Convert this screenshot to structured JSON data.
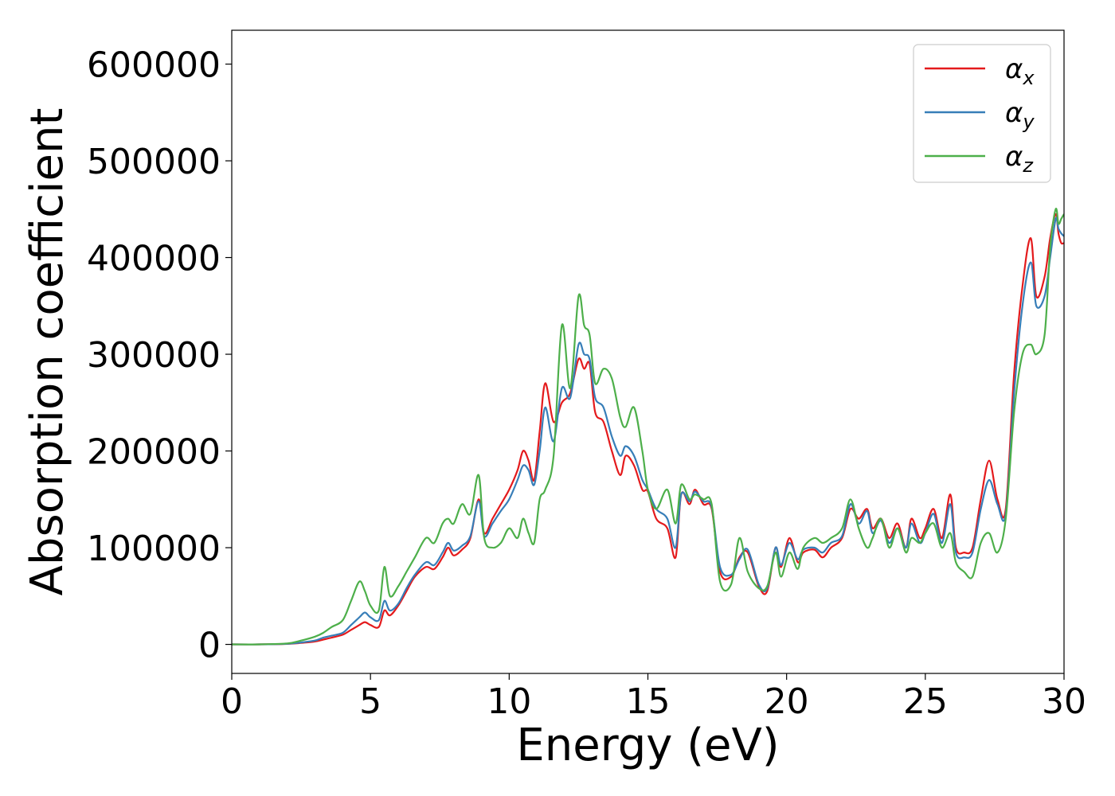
{
  "chart_data": {
    "type": "line",
    "title": "",
    "xlabel": "Energy (eV)",
    "ylabel": "Absorption coefficient",
    "xlim": [
      0,
      30
    ],
    "ylim": [
      -30000,
      635000
    ],
    "xticks": [
      0,
      5,
      10,
      15,
      20,
      25,
      30
    ],
    "xtick_labels": [
      "0",
      "5",
      "10",
      "15",
      "20",
      "25",
      "30"
    ],
    "yticks": [
      0,
      100000,
      200000,
      300000,
      400000,
      500000,
      600000
    ],
    "ytick_labels": [
      "0",
      "100000",
      "200000",
      "300000",
      "400000",
      "500000",
      "600000"
    ],
    "grid": false,
    "legend_position": "top-right",
    "x": [
      0,
      1,
      2,
      2.5,
      3,
      3.3,
      3.6,
      4,
      4.3,
      4.6,
      4.8,
      5,
      5.3,
      5.5,
      5.7,
      6,
      6.3,
      6.6,
      7,
      7.3,
      7.6,
      7.8,
      8,
      8.3,
      8.6,
      8.9,
      9.1,
      9.4,
      9.7,
      10,
      10.3,
      10.5,
      10.7,
      10.9,
      11.1,
      11.3,
      11.6,
      11.9,
      12.2,
      12.5,
      12.7,
      12.9,
      13.1,
      13.4,
      13.7,
      14,
      14.2,
      14.5,
      14.8,
      15,
      15.3,
      15.7,
      16,
      16.2,
      16.5,
      16.7,
      17,
      17.3,
      17.6,
      18,
      18.3,
      18.6,
      19,
      19.3,
      19.6,
      19.8,
      20.1,
      20.4,
      20.6,
      21,
      21.3,
      21.6,
      22,
      22.3,
      22.6,
      22.9,
      23.1,
      23.4,
      23.7,
      24,
      24.3,
      24.5,
      24.8,
      25,
      25.3,
      25.6,
      25.9,
      26.1,
      26.4,
      26.7,
      27,
      27.3,
      27.6,
      27.9,
      28.2,
      28.5,
      28.8,
      29,
      29.3,
      29.5,
      29.7,
      29.8,
      29.9,
      30
    ],
    "series": [
      {
        "name": "x",
        "color": "#e41a1c",
        "values": [
          0,
          0,
          500,
          1500,
          3000,
          5000,
          7000,
          10000,
          15000,
          20000,
          23000,
          20000,
          18000,
          35000,
          30000,
          40000,
          55000,
          70000,
          80000,
          78000,
          90000,
          100000,
          92000,
          98000,
          110000,
          150000,
          115000,
          130000,
          145000,
          160000,
          180000,
          200000,
          190000,
          170000,
          220000,
          270000,
          230000,
          250000,
          260000,
          295000,
          285000,
          290000,
          240000,
          230000,
          200000,
          175000,
          195000,
          185000,
          160000,
          158000,
          130000,
          120000,
          90000,
          155000,
          145000,
          160000,
          145000,
          140000,
          75000,
          70000,
          90000,
          95000,
          60000,
          55000,
          100000,
          80000,
          110000,
          85000,
          95000,
          98000,
          90000,
          100000,
          110000,
          140000,
          130000,
          140000,
          120000,
          130000,
          110000,
          125000,
          100000,
          130000,
          110000,
          120000,
          140000,
          110000,
          155000,
          100000,
          95000,
          100000,
          150000,
          190000,
          150000,
          140000,
          280000,
          370000,
          420000,
          360000,
          380000,
          420000,
          445000,
          425000,
          415000,
          415000
        ]
      },
      {
        "name": "y",
        "color": "#377eb8",
        "values": [
          0,
          0,
          600,
          2000,
          4000,
          7000,
          9000,
          12000,
          20000,
          28000,
          33000,
          28000,
          25000,
          45000,
          35000,
          42000,
          58000,
          72000,
          85000,
          82000,
          95000,
          105000,
          97000,
          102000,
          112000,
          148000,
          112000,
          125000,
          138000,
          150000,
          170000,
          185000,
          180000,
          165000,
          200000,
          245000,
          210000,
          265000,
          255000,
          310000,
          300000,
          295000,
          255000,
          245000,
          215000,
          195000,
          205000,
          195000,
          170000,
          160000,
          140000,
          130000,
          100000,
          155000,
          148000,
          158000,
          148000,
          142000,
          80000,
          72000,
          88000,
          98000,
          62000,
          58000,
          100000,
          82000,
          105000,
          88000,
          98000,
          100000,
          95000,
          105000,
          112000,
          145000,
          125000,
          138000,
          115000,
          128000,
          105000,
          120000,
          100000,
          125000,
          105000,
          115000,
          135000,
          105000,
          145000,
          95000,
          90000,
          95000,
          140000,
          170000,
          145000,
          135000,
          260000,
          350000,
          395000,
          350000,
          360000,
          400000,
          440000,
          430000,
          425000,
          422000
        ]
      },
      {
        "name": "z",
        "color": "#4daf4a",
        "values": [
          0,
          0,
          1000,
          4000,
          8000,
          12000,
          18000,
          25000,
          45000,
          65000,
          55000,
          40000,
          35000,
          80000,
          50000,
          60000,
          75000,
          90000,
          110000,
          105000,
          125000,
          130000,
          125000,
          145000,
          135000,
          175000,
          110000,
          100000,
          105000,
          120000,
          110000,
          130000,
          115000,
          105000,
          150000,
          160000,
          195000,
          330000,
          265000,
          360000,
          330000,
          320000,
          270000,
          285000,
          275000,
          235000,
          225000,
          245000,
          200000,
          160000,
          140000,
          160000,
          125000,
          165000,
          150000,
          155000,
          150000,
          145000,
          65000,
          62000,
          110000,
          75000,
          58000,
          60000,
          95000,
          70000,
          95000,
          78000,
          100000,
          110000,
          105000,
          110000,
          120000,
          150000,
          120000,
          100000,
          110000,
          130000,
          100000,
          120000,
          95000,
          110000,
          105000,
          115000,
          125000,
          100000,
          115000,
          85000,
          75000,
          70000,
          105000,
          115000,
          95000,
          130000,
          240000,
          300000,
          310000,
          300000,
          320000,
          410000,
          450000,
          435000,
          440000,
          445000
        ]
      }
    ]
  }
}
